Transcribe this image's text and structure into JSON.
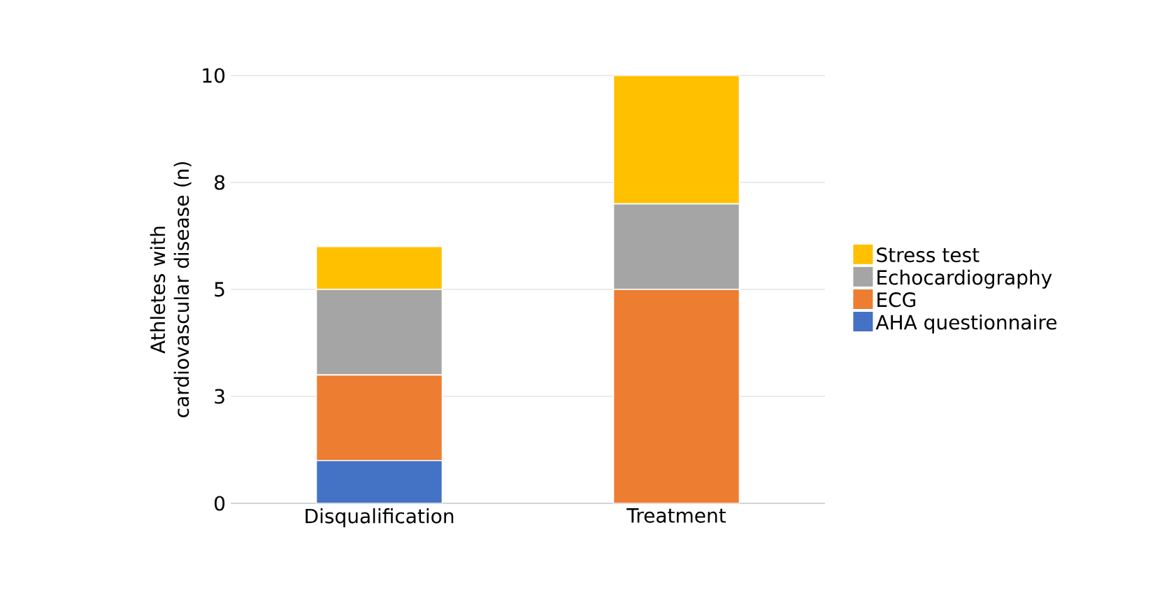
{
  "chart_data": {
    "type": "bar",
    "stacked": true,
    "ylabel": "Athletes with cardiovascular disease (n)",
    "categories": [
      "Disqualification",
      "Treatment"
    ],
    "series": [
      {
        "name": "AHA questionnaire",
        "color": "#4472c4",
        "values": [
          1,
          0
        ]
      },
      {
        "name": "ECG",
        "color": "#ed7d31",
        "values": [
          2,
          5
        ]
      },
      {
        "name": "Echocardiography",
        "color": "#a5a5a5",
        "values": [
          2,
          2
        ]
      },
      {
        "name": "Stress test",
        "color": "#ffc000",
        "values": [
          1,
          3
        ]
      }
    ],
    "ylim": [
      0,
      10
    ],
    "yticks": [
      0,
      {
        "value": 2.5,
        "label": "3"
      },
      5,
      {
        "value": 7.5,
        "label": "8"
      },
      10
    ],
    "grid": "y",
    "legend": "right"
  }
}
